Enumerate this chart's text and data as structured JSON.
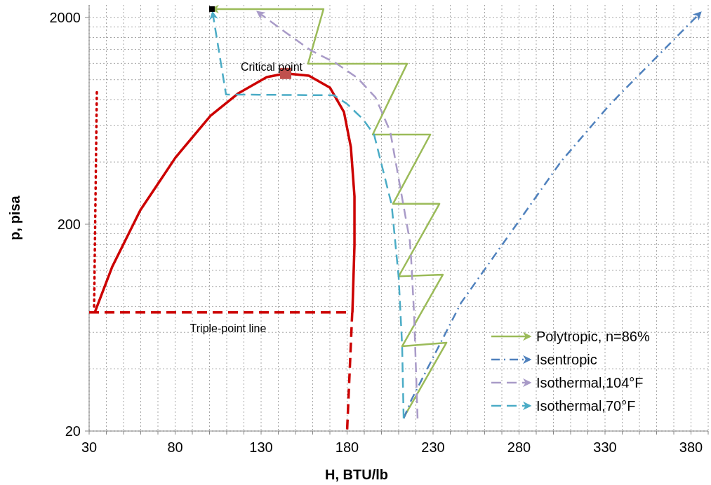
{
  "chart_data": {
    "type": "line",
    "xlabel": "H, BTU/lb",
    "ylabel": "p, pisa",
    "log": "y",
    "grid": true,
    "legend": "bottom right",
    "xlim": [
      30,
      390
    ],
    "ylim": [
      20,
      2300
    ],
    "xticks": [
      30,
      {
        "value": 40,
        "label": null
      },
      {
        "value": 50,
        "label": null
      },
      {
        "value": 60,
        "label": null
      },
      {
        "value": 70,
        "label": null
      },
      80,
      {
        "value": 90,
        "label": null
      },
      {
        "value": 100,
        "label": null
      },
      {
        "value": 110,
        "label": null
      },
      {
        "value": 120,
        "label": null
      },
      130,
      {
        "value": 140,
        "label": null
      },
      {
        "value": 150,
        "label": null
      },
      {
        "value": 160,
        "label": null
      },
      {
        "value": 170,
        "label": null
      },
      180,
      {
        "value": 190,
        "label": null
      },
      {
        "value": 200,
        "label": null
      },
      {
        "value": 210,
        "label": null
      },
      {
        "value": 220,
        "label": null
      },
      230,
      {
        "value": 240,
        "label": null
      },
      {
        "value": 250,
        "label": null
      },
      {
        "value": 260,
        "label": null
      },
      {
        "value": 270,
        "label": null
      },
      280,
      {
        "value": 290,
        "label": null
      },
      {
        "value": 300,
        "label": null
      },
      {
        "value": 310,
        "label": null
      },
      {
        "value": 320,
        "label": null
      },
      330,
      {
        "value": 340,
        "label": null
      },
      {
        "value": 350,
        "label": null
      },
      {
        "value": 360,
        "label": null
      },
      {
        "value": 370,
        "label": null
      },
      380,
      {
        "value": 390,
        "label": null
      }
    ],
    "yticks": [
      20,
      {
        "value": 40,
        "label": null
      },
      {
        "value": 60,
        "label": null
      },
      {
        "value": 80,
        "label": null
      },
      {
        "value": 100,
        "label": null
      },
      {
        "value": 120,
        "label": null
      },
      {
        "value": 140,
        "label": null
      },
      {
        "value": 160,
        "label": null
      },
      {
        "value": 180,
        "label": null
      },
      200,
      {
        "value": 400,
        "label": null
      },
      {
        "value": 600,
        "label": null
      },
      {
        "value": 800,
        "label": null
      },
      {
        "value": 1000,
        "label": null
      },
      {
        "value": 1200,
        "label": null
      },
      {
        "value": 1400,
        "label": null
      },
      {
        "value": 1600,
        "label": null
      },
      {
        "value": 1800,
        "label": null
      },
      2000
    ],
    "annotations": [
      "Critical point",
      "Triple-point line"
    ],
    "series": [
      {
        "color": "#cc0000",
        "line_style": "solid",
        "x": [
          33.3,
          43.5,
          59.8,
          80.2,
          100.6,
          116.9,
          133.3,
          144.3,
          157.8,
          170,
          178.2,
          182.2,
          184.3,
          184.3,
          183.1
        ],
        "values": [
          75,
          125,
          234,
          420,
          670,
          861,
          1030,
          1072,
          1046,
          916,
          697,
          472,
          273,
          158,
          75
        ]
      },
      {
        "color": "#cc0000",
        "line_style": "dashed",
        "x": [
          30,
          183,
          180
        ],
        "values": [
          75,
          75,
          20
        ]
      },
      {
        "color": "#cc0000",
        "line_style": "dotted",
        "x": [
          32.9,
          34.5
        ],
        "values": [
          80,
          900
        ]
      },
      {
        "name": "Polytropic, n=86%",
        "color": "#9bbb59",
        "line_style": "solid",
        "x": [
          212.9,
          237.8,
          212.0,
          235.7,
          210.0,
          233.7,
          206.7,
          228.4,
          194.9,
          214.9,
          157.3,
          166.3,
          101.4
        ],
        "values": [
          23.2,
          53.5,
          51.4,
          114,
          112,
          251,
          251,
          543,
          543,
          1195,
          1195,
          2196,
          2196
        ]
      },
      {
        "name": "Isentropic",
        "color": "#4f81bd",
        "line_style": "dashdot",
        "x": [
          212.9,
          217.3,
          246.3,
          304.3,
          332.9,
          385.5
        ],
        "values": [
          23.0,
          28.2,
          83.4,
          401,
          760,
          2112
        ]
      },
      {
        "name": "Isothermal,104°F",
        "color": "#a99bc8",
        "line_style": "dashed",
        "x": [
          221.0,
          219.0,
          217.3,
          216.5,
          205.1,
          196.5,
          185.9,
          173.3,
          159.0,
          144.7,
          128.0
        ],
        "values": [
          23.0,
          72.5,
          134,
          166,
          561,
          822,
          1022,
          1205,
          1386,
          1684,
          2128
        ]
      },
      {
        "name": "Isothermal,70°F",
        "color": "#4bacc6",
        "line_style": "dashed",
        "x": [
          212.9,
          212.0,
          210.0,
          205.9,
          195.7,
          189.2,
          179.8,
          172.4,
          109.6,
          101.8
        ],
        "values": [
          23.0,
          51.9,
          111,
          249,
          543,
          645,
          766,
          841,
          848,
          2112
        ]
      },
      {
        "type": "scatter",
        "color": "#c0504d",
        "marker": "square",
        "x": [
          144.3
        ],
        "values": [
          1072
        ]
      },
      {
        "type": "scatter",
        "color": "#000000",
        "marker": "square",
        "x": [
          101.4
        ],
        "values": [
          2196
        ]
      }
    ]
  }
}
